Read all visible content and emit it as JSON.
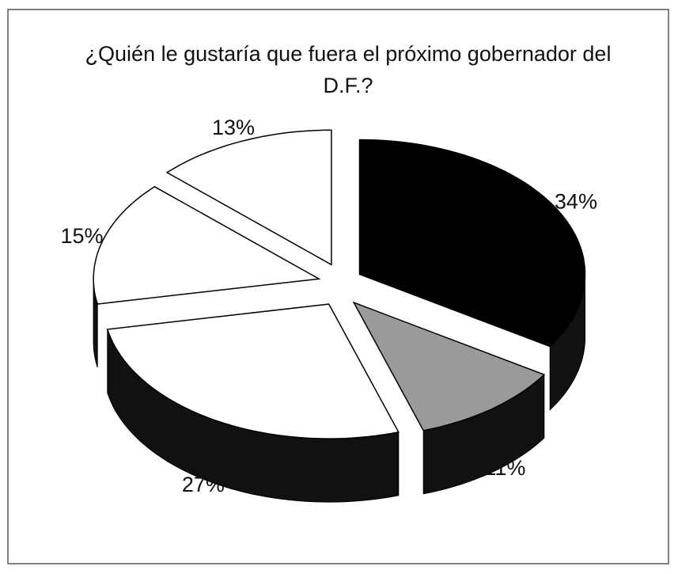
{
  "chart_data": {
    "type": "pie3d",
    "title": "¿Quién le gustaría que fuera el próximo gobernador del D.F.?",
    "values": [
      34,
      11,
      27,
      15,
      13
    ],
    "value_labels": [
      "34%",
      "11%",
      "27%",
      "15%",
      "13%"
    ],
    "colors": [
      "#000000",
      "#9a9a9a",
      "#ffffff",
      "#ffffff",
      "#ffffff"
    ],
    "depth_color": "#111111"
  }
}
